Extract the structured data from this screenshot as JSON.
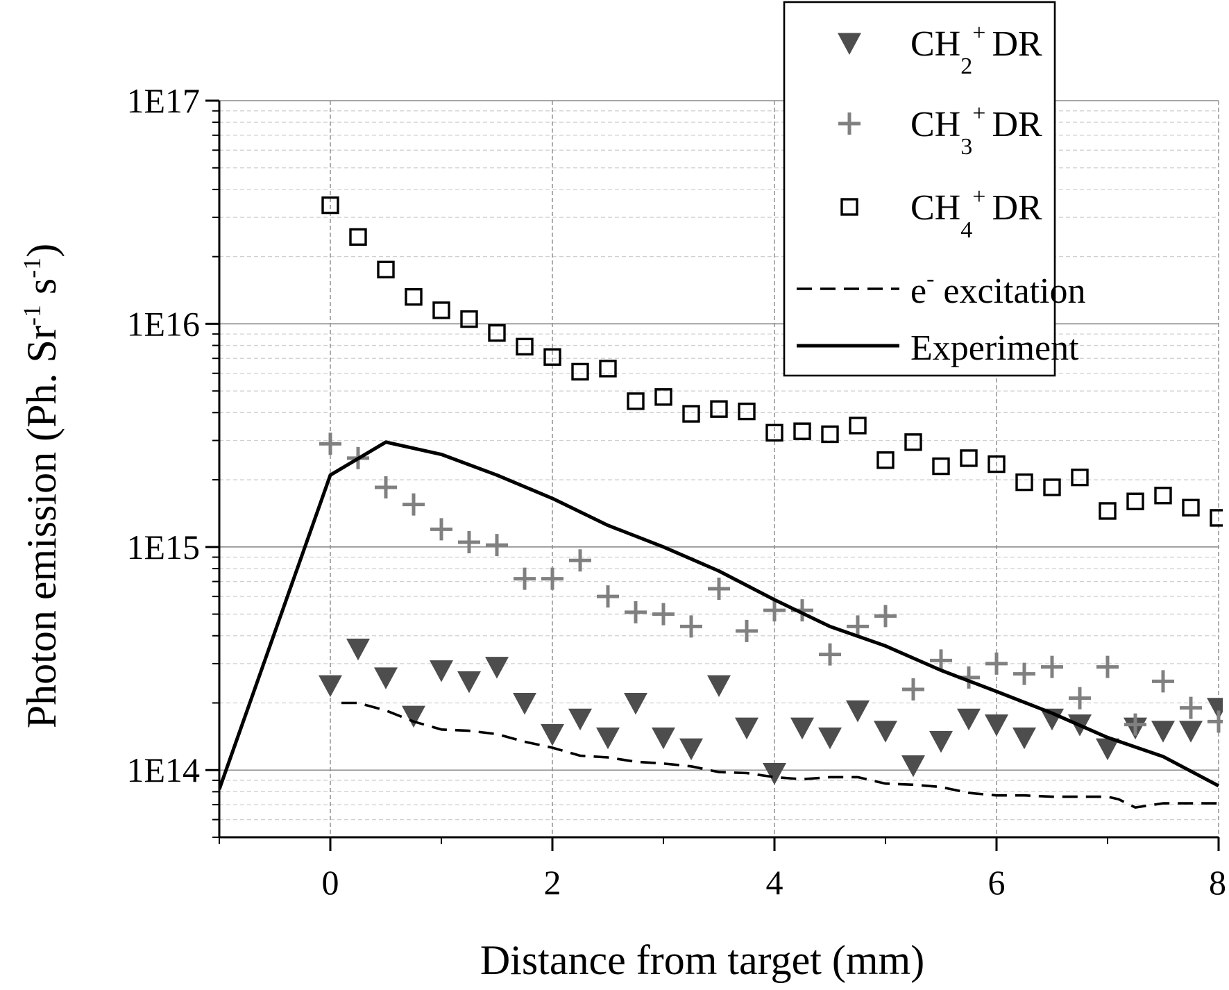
{
  "chart_data": {
    "type": "scatter",
    "title": "",
    "xlabel": "Distance from target (mm)",
    "ylabel": "Photon emission (Ph. Sr",
    "ylabel_sup1": "-1",
    "ylabel_mid": " s",
    "ylabel_sup2": "-1",
    "ylabel_end": ")",
    "xlim": [
      -1,
      8
    ],
    "ylim": [
      50000000000000,
      100000000000000000
    ],
    "yscale": "log",
    "x_ticks": [
      0,
      2,
      4,
      6,
      8
    ],
    "x_tick_labels": [
      "0",
      "2",
      "4",
      "6",
      "8"
    ],
    "y_ticks": [
      100000000000000,
      1000000000000000,
      10000000000000000,
      100000000000000000
    ],
    "y_tick_labels": [
      "1E14",
      "1E15",
      "1E16",
      "1E17"
    ],
    "grid": true,
    "legend_position": "top-right",
    "series": [
      {
        "name": "CH2+ DR",
        "legend_base": "CH",
        "legend_sub": "2",
        "legend_sup": "+",
        "legend_suffix": " DR",
        "marker": "triangle-down",
        "color": "#4d4d4d",
        "x": [
          0,
          0.25,
          0.5,
          0.75,
          1,
          1.25,
          1.5,
          1.75,
          2,
          2.25,
          2.5,
          2.75,
          3,
          3.25,
          3.5,
          3.75,
          4,
          4.25,
          4.5,
          4.75,
          5,
          5.25,
          5.5,
          5.75,
          6,
          6.25,
          6.5,
          6.75,
          7,
          7.25,
          7.5,
          7.75,
          8
        ],
        "y": [
          240000000000000,
          350000000000000,
          260000000000000,
          175000000000000,
          280000000000000,
          250000000000000,
          290000000000000,
          200000000000000,
          145000000000000,
          170000000000000,
          140000000000000,
          200000000000000,
          140000000000000,
          125000000000000,
          240000000000000,
          155000000000000,
          97000000000000,
          155000000000000,
          140000000000000,
          185000000000000,
          150000000000000,
          105000000000000,
          135000000000000,
          170000000000000,
          160000000000000,
          140000000000000,
          170000000000000,
          160000000000000,
          125000000000000,
          155000000000000,
          150000000000000,
          150000000000000,
          190000000000000
        ]
      },
      {
        "name": "CH3+ DR",
        "legend_base": "CH",
        "legend_sub": "3",
        "legend_sup": "+",
        "legend_suffix": " DR",
        "marker": "plus",
        "color": "#808080",
        "x": [
          0,
          0.25,
          0.5,
          0.75,
          1,
          1.25,
          1.5,
          1.75,
          2,
          2.25,
          2.5,
          2.75,
          3,
          3.25,
          3.5,
          3.75,
          4,
          4.25,
          4.5,
          4.75,
          5,
          5.25,
          5.5,
          5.75,
          6,
          6.25,
          6.5,
          6.75,
          7,
          7.25,
          7.5,
          7.75,
          8
        ],
        "y": [
          2900000000000000,
          2500000000000000,
          1850000000000000,
          1550000000000000,
          1200000000000000,
          1050000000000000,
          1020000000000000,
          720000000000000,
          720000000000000,
          870000000000000,
          600000000000000,
          510000000000000,
          500000000000000,
          440000000000000,
          650000000000000,
          420000000000000,
          520000000000000,
          520000000000000,
          330000000000000,
          440000000000000,
          490000000000000,
          230000000000000,
          310000000000000,
          260000000000000,
          300000000000000,
          270000000000000,
          290000000000000,
          210000000000000,
          290000000000000,
          160000000000000,
          250000000000000,
          190000000000000,
          165000000000000
        ]
      },
      {
        "name": "CH4+ DR",
        "legend_base": "CH",
        "legend_sub": "4",
        "legend_sup": "+",
        "legend_suffix": " DR",
        "marker": "square-open",
        "color": "#000000",
        "x": [
          0,
          0.25,
          0.5,
          0.75,
          1,
          1.25,
          1.5,
          1.75,
          2,
          2.25,
          2.5,
          2.75,
          3,
          3.25,
          3.5,
          3.75,
          4,
          4.25,
          4.5,
          4.75,
          5,
          5.25,
          5.5,
          5.75,
          6,
          6.25,
          6.5,
          6.75,
          7,
          7.25,
          7.5,
          7.75,
          8
        ],
        "y": [
          34000000000000000,
          24500000000000000,
          17500000000000000,
          13200000000000000,
          11500000000000000,
          10500000000000000,
          9100000000000000,
          7900000000000000,
          7100000000000000,
          6100000000000000,
          6300000000000000,
          4500000000000000,
          4700000000000000,
          3950000000000000,
          4150000000000000,
          4050000000000000,
          3250000000000000,
          3300000000000000,
          3200000000000000,
          3500000000000000,
          2450000000000000,
          2950000000000000,
          2300000000000000,
          2500000000000000,
          2350000000000000,
          1950000000000000,
          1850000000000000,
          2050000000000000,
          1450000000000000,
          1600000000000000,
          1700000000000000,
          1500000000000000,
          1350000000000000
        ]
      },
      {
        "name": "e- excitation",
        "legend_base": "e",
        "legend_sup": "-",
        "legend_suffix": " excitation",
        "marker": "dashed-line",
        "color": "#000000",
        "x": [
          0.1,
          0.25,
          0.5,
          0.75,
          1,
          1.25,
          1.5,
          1.75,
          2,
          2.25,
          2.5,
          2.75,
          3,
          3.25,
          3.5,
          3.75,
          4,
          4.25,
          4.5,
          4.75,
          5,
          5.25,
          5.5,
          5.75,
          6,
          6.25,
          6.5,
          6.75,
          7,
          7.1,
          7.25,
          7.5,
          7.75,
          8
        ],
        "y": [
          200000000000000,
          200000000000000,
          185000000000000,
          165000000000000,
          152000000000000,
          150000000000000,
          145000000000000,
          134000000000000,
          126000000000000,
          116000000000000,
          114000000000000,
          109000000000000,
          107000000000000,
          104000000000000,
          98000000000000,
          97000000000000,
          93000000000000,
          91000000000000,
          93000000000000,
          93000000000000,
          87000000000000,
          86000000000000,
          84000000000000,
          79000000000000,
          77000000000000,
          77000000000000,
          76000000000000,
          76000000000000,
          76000000000000,
          74000000000000,
          68000000000000,
          71000000000000,
          71000000000000,
          71000000000000
        ]
      },
      {
        "name": "Experiment",
        "legend_base": "Experiment",
        "legend_suffix": "",
        "marker": "solid-line",
        "color": "#000000",
        "x": [
          -1,
          0,
          0.5,
          1,
          1.5,
          2,
          2.5,
          3,
          3.5,
          4,
          4.5,
          5,
          5.5,
          6,
          6.5,
          7,
          7.5,
          8
        ],
        "y": [
          82000000000000,
          2100000000000000,
          2950000000000000,
          2600000000000000,
          2100000000000000,
          1650000000000000,
          1250000000000000,
          1000000000000000,
          780000000000000,
          580000000000000,
          440000000000000,
          360000000000000,
          280000000000000,
          225000000000000,
          180000000000000,
          140000000000000,
          115000000000000,
          85000000000000
        ]
      }
    ]
  }
}
